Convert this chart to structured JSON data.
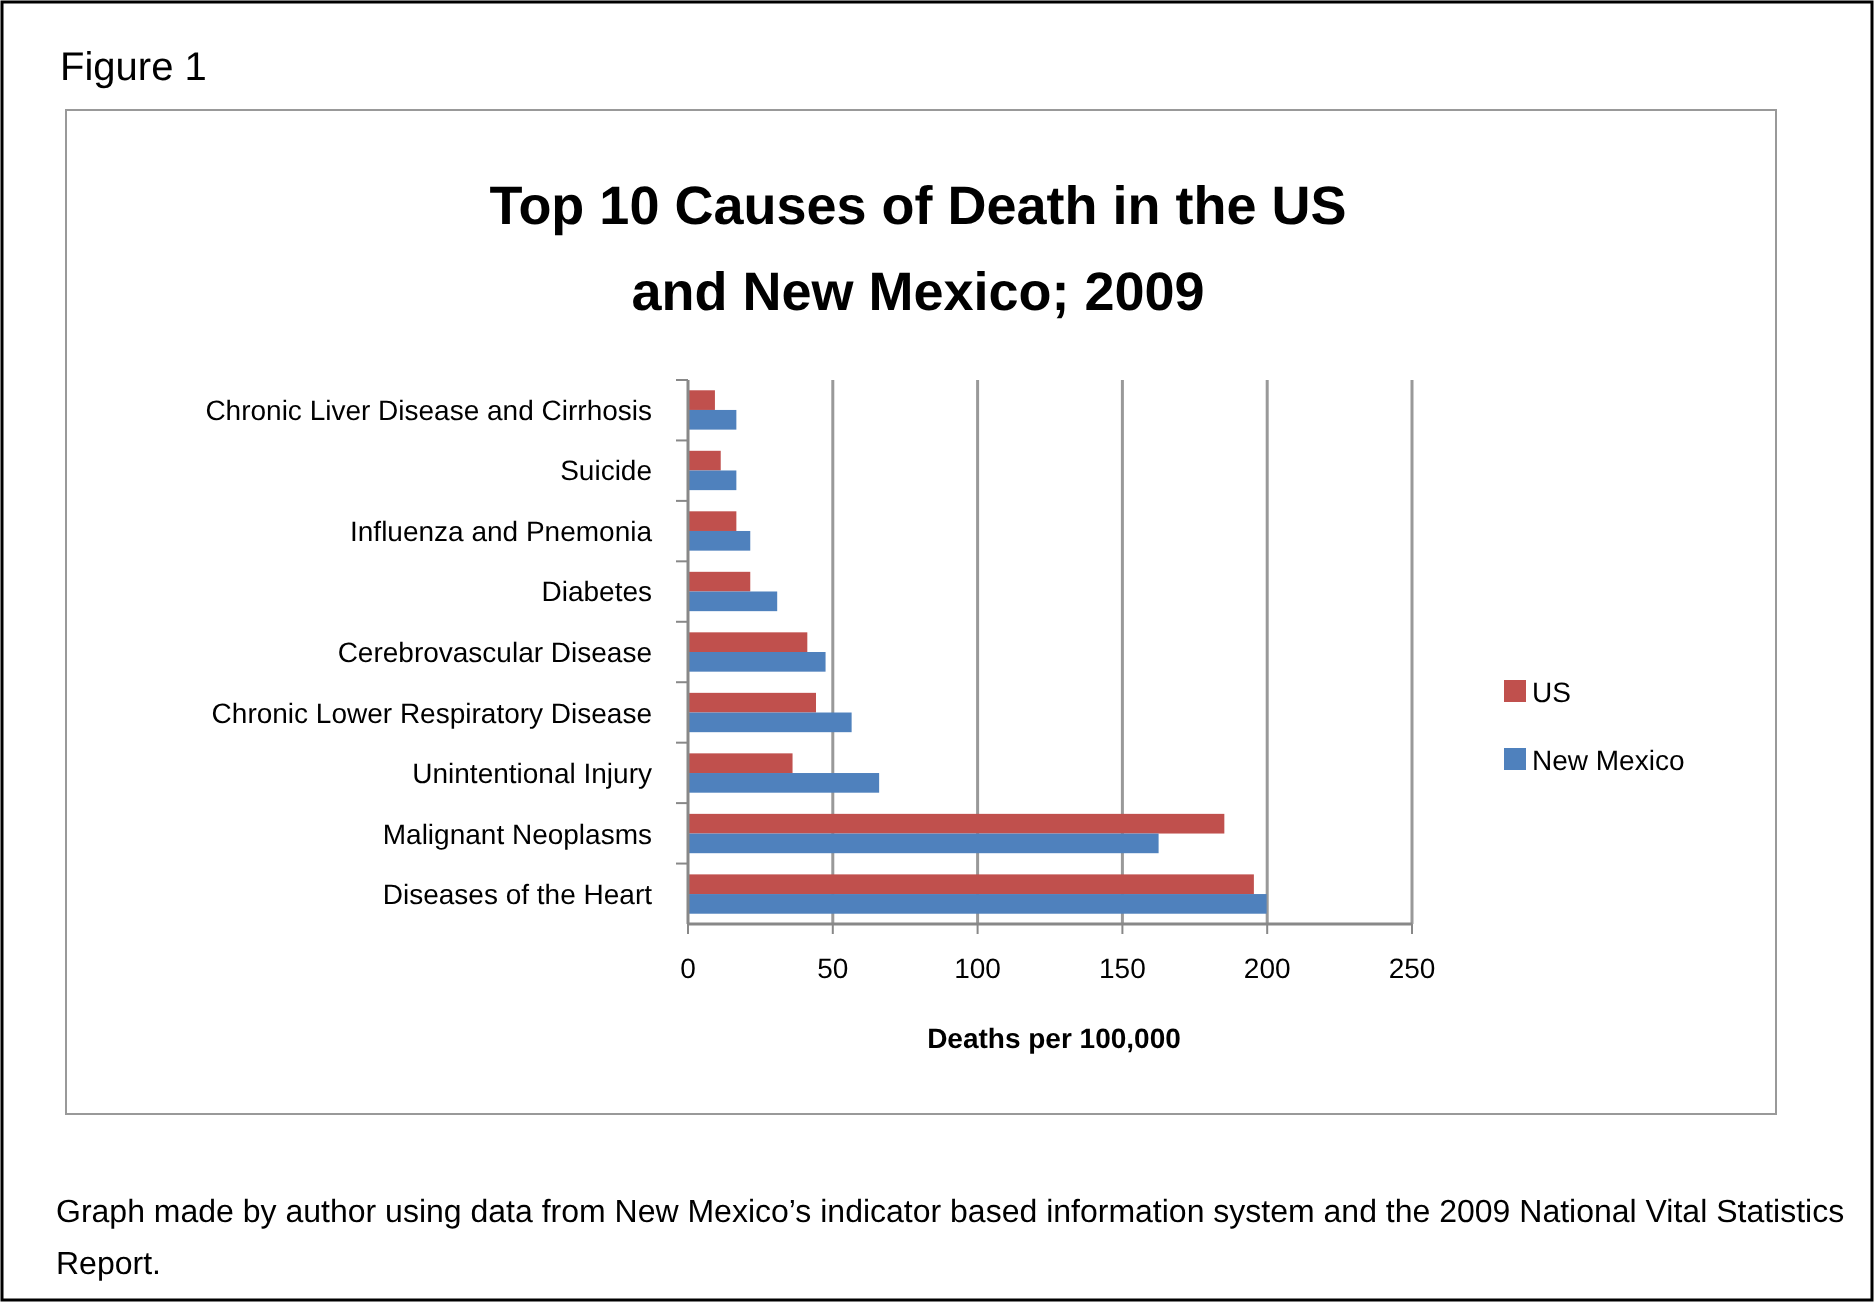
{
  "chart_data": {
    "type": "bar",
    "orientation": "horizontal",
    "title": "Top 10 Causes of Death in the US and New Mexico; 2009",
    "xlabel": "Deaths per 100,000",
    "categories": [
      "Chronic Liver Disease and Cirrhosis",
      "Suicide",
      "Influenza and Pnemonia",
      "Diabetes",
      "Cerebrovascular Disease",
      "Chronic Lower Respiratory Disease",
      "Unintentional Injury",
      "Malignant Neoplasms",
      "Diseases of the Heart"
    ],
    "series": [
      {
        "name": "US",
        "color": "#c0504d",
        "values": [
          9.3,
          11.3,
          16.7,
          21.5,
          41.2,
          44.2,
          36.1,
          185.2,
          195.4
        ]
      },
      {
        "name": "New Mexico",
        "color": "#4f81bd",
        "values": [
          16.7,
          16.7,
          21.5,
          30.8,
          47.5,
          56.5,
          66,
          162.5,
          199.8
        ]
      }
    ],
    "xlim": [
      0,
      250
    ],
    "xticks": [
      0,
      50,
      100,
      150,
      200,
      250
    ],
    "grid": "x",
    "legend": "right",
    "annotations": [
      "Figure 1",
      "Graph made by author using data from New Mexico’s indicator based information system and the 2009 National Vital Statistics Report."
    ]
  }
}
